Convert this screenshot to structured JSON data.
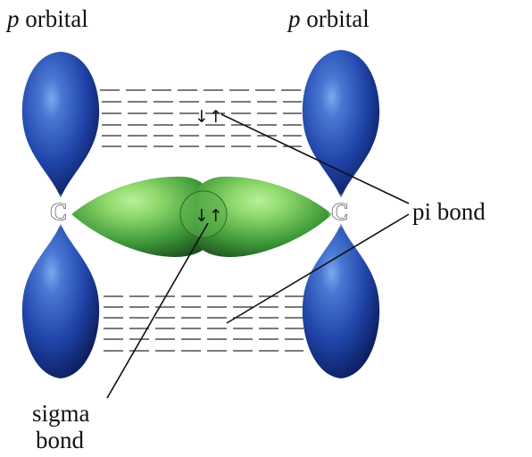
{
  "figure": {
    "labels": {
      "p_orbital_left": {
        "italic": "p",
        "rest": " orbital"
      },
      "p_orbital_right": {
        "italic": "p",
        "rest": " orbital"
      },
      "pi_bond": "pi bond",
      "sigma_bond_line1": "sigma",
      "sigma_bond_line2": "bond",
      "carbon_left": "C",
      "carbon_right": "C",
      "electron_pair_pi": "↓↑",
      "electron_pair_sigma": "↓↑"
    },
    "colors": {
      "p_lobe_light": "#4a78d4",
      "p_lobe_mid": "#1f43a8",
      "p_lobe_dark": "#0a1a55",
      "sigma_light": "#8fd86a",
      "sigma_mid": "#3f9a3a",
      "sigma_dark": "#1b4d1d"
    }
  }
}
